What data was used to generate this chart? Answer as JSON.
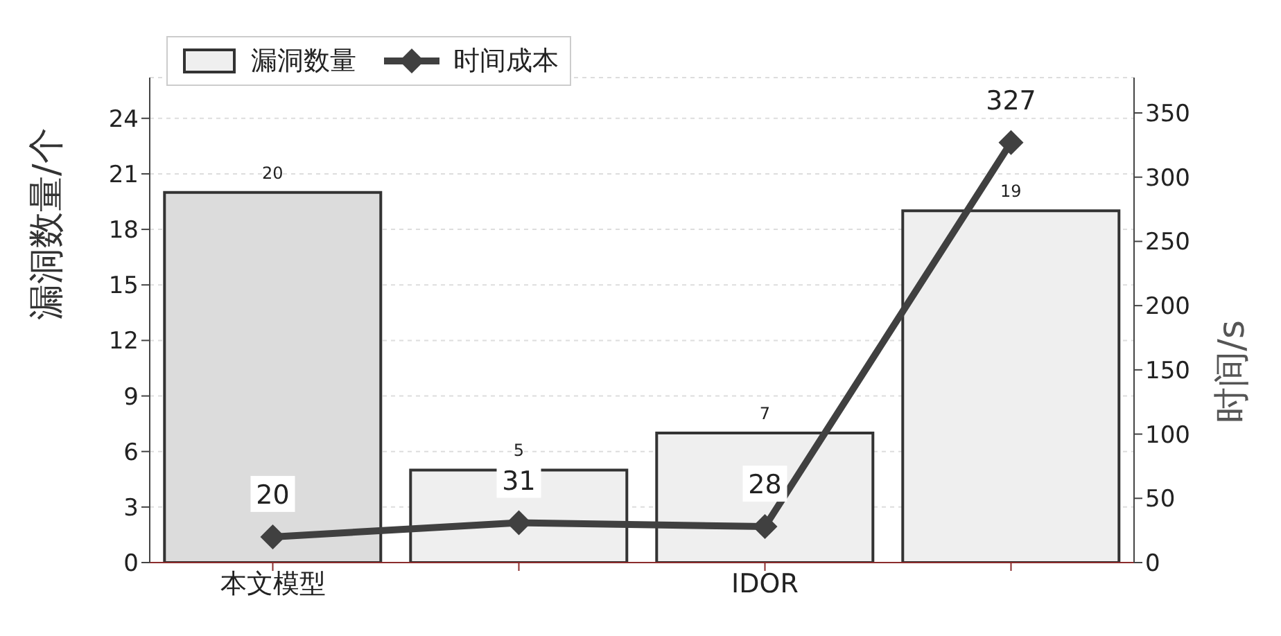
{
  "chart_data": {
    "type": "bar",
    "categories": [
      "本文模型",
      null,
      "IDOR",
      null
    ],
    "series": [
      {
        "name": "漏洞数量",
        "colors": [
          "#dcdcdc",
          "#efefef",
          "#efefef",
          "#efefef"
        ],
        "color": "#efefef",
        "values": [
          20,
          5,
          7,
          19
        ]
      },
      {
        "name": "时间成本",
        "type": "line",
        "axis": "y2",
        "color": "#404040",
        "values": [
          20,
          31,
          28,
          327
        ]
      }
    ],
    "ylabel": "漏洞数量/个",
    "y2label": "时间/s",
    "ylim": [
      0,
      26.2
    ],
    "yticks": [
      0,
      3,
      6,
      9,
      12,
      15,
      18,
      21,
      24
    ],
    "y2lim": [
      0,
      377.5
    ],
    "y2ticks": [
      0,
      50,
      100,
      150,
      200,
      250,
      300,
      350
    ],
    "data_labels": true,
    "grid": "y",
    "legend": "top left",
    "marker": "diamond"
  }
}
